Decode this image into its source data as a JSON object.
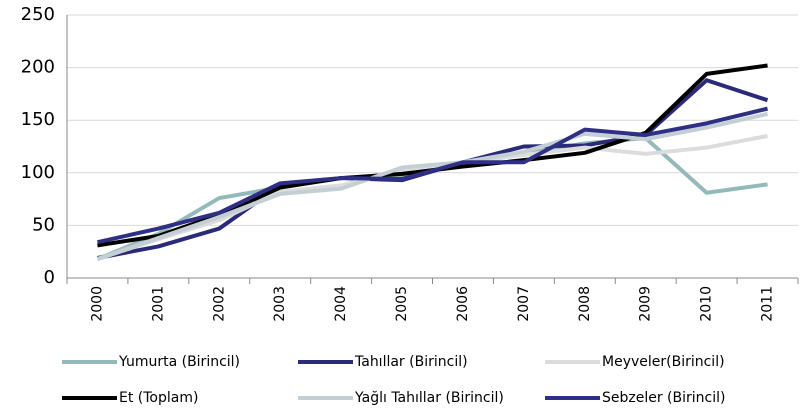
{
  "chart_data": {
    "type": "line",
    "categories": [
      "2000",
      "2001",
      "2002",
      "2003",
      "2004",
      "2005",
      "2006",
      "2007",
      "2008",
      "2009",
      "2010",
      "2011"
    ],
    "series": [
      {
        "name": "Yumurta (Birincil)",
        "color": "#93b9bb",
        "values": [
          18,
          42,
          76,
          86,
          95,
          97,
          108,
          118,
          128,
          133,
          81,
          89
        ]
      },
      {
        "name": "Tahıllar (Birincil)",
        "color": "#2a2a78",
        "values": [
          19,
          30,
          47,
          88,
          95,
          93,
          110,
          125,
          126,
          136,
          188,
          169
        ]
      },
      {
        "name": "Meyveler(Birincil)",
        "color": "#dcdcdc",
        "values": [
          18,
          37,
          55,
          82,
          88,
          103,
          110,
          117,
          124,
          118,
          124,
          135
        ]
      },
      {
        "name": "Et (Toplam)",
        "color": "#000000",
        "values": [
          31,
          40,
          60,
          86,
          95,
          99,
          106,
          112,
          119,
          138,
          194,
          202
        ]
      },
      {
        "name": "Yağlı Tahıllar (Birincil)",
        "color": "#c3cfd4",
        "values": [
          18,
          38,
          58,
          80,
          85,
          105,
          110,
          120,
          137,
          132,
          143,
          156
        ]
      },
      {
        "name": "Sebzeler (Birincil)",
        "color": "#2f2f85",
        "values": [
          34,
          47,
          62,
          90,
          95,
          94,
          110,
          110,
          141,
          136,
          147,
          161
        ]
      }
    ],
    "ylim": [
      0,
      250
    ],
    "yticks": [
      0,
      50,
      100,
      150,
      200,
      250
    ],
    "grid": true
  }
}
